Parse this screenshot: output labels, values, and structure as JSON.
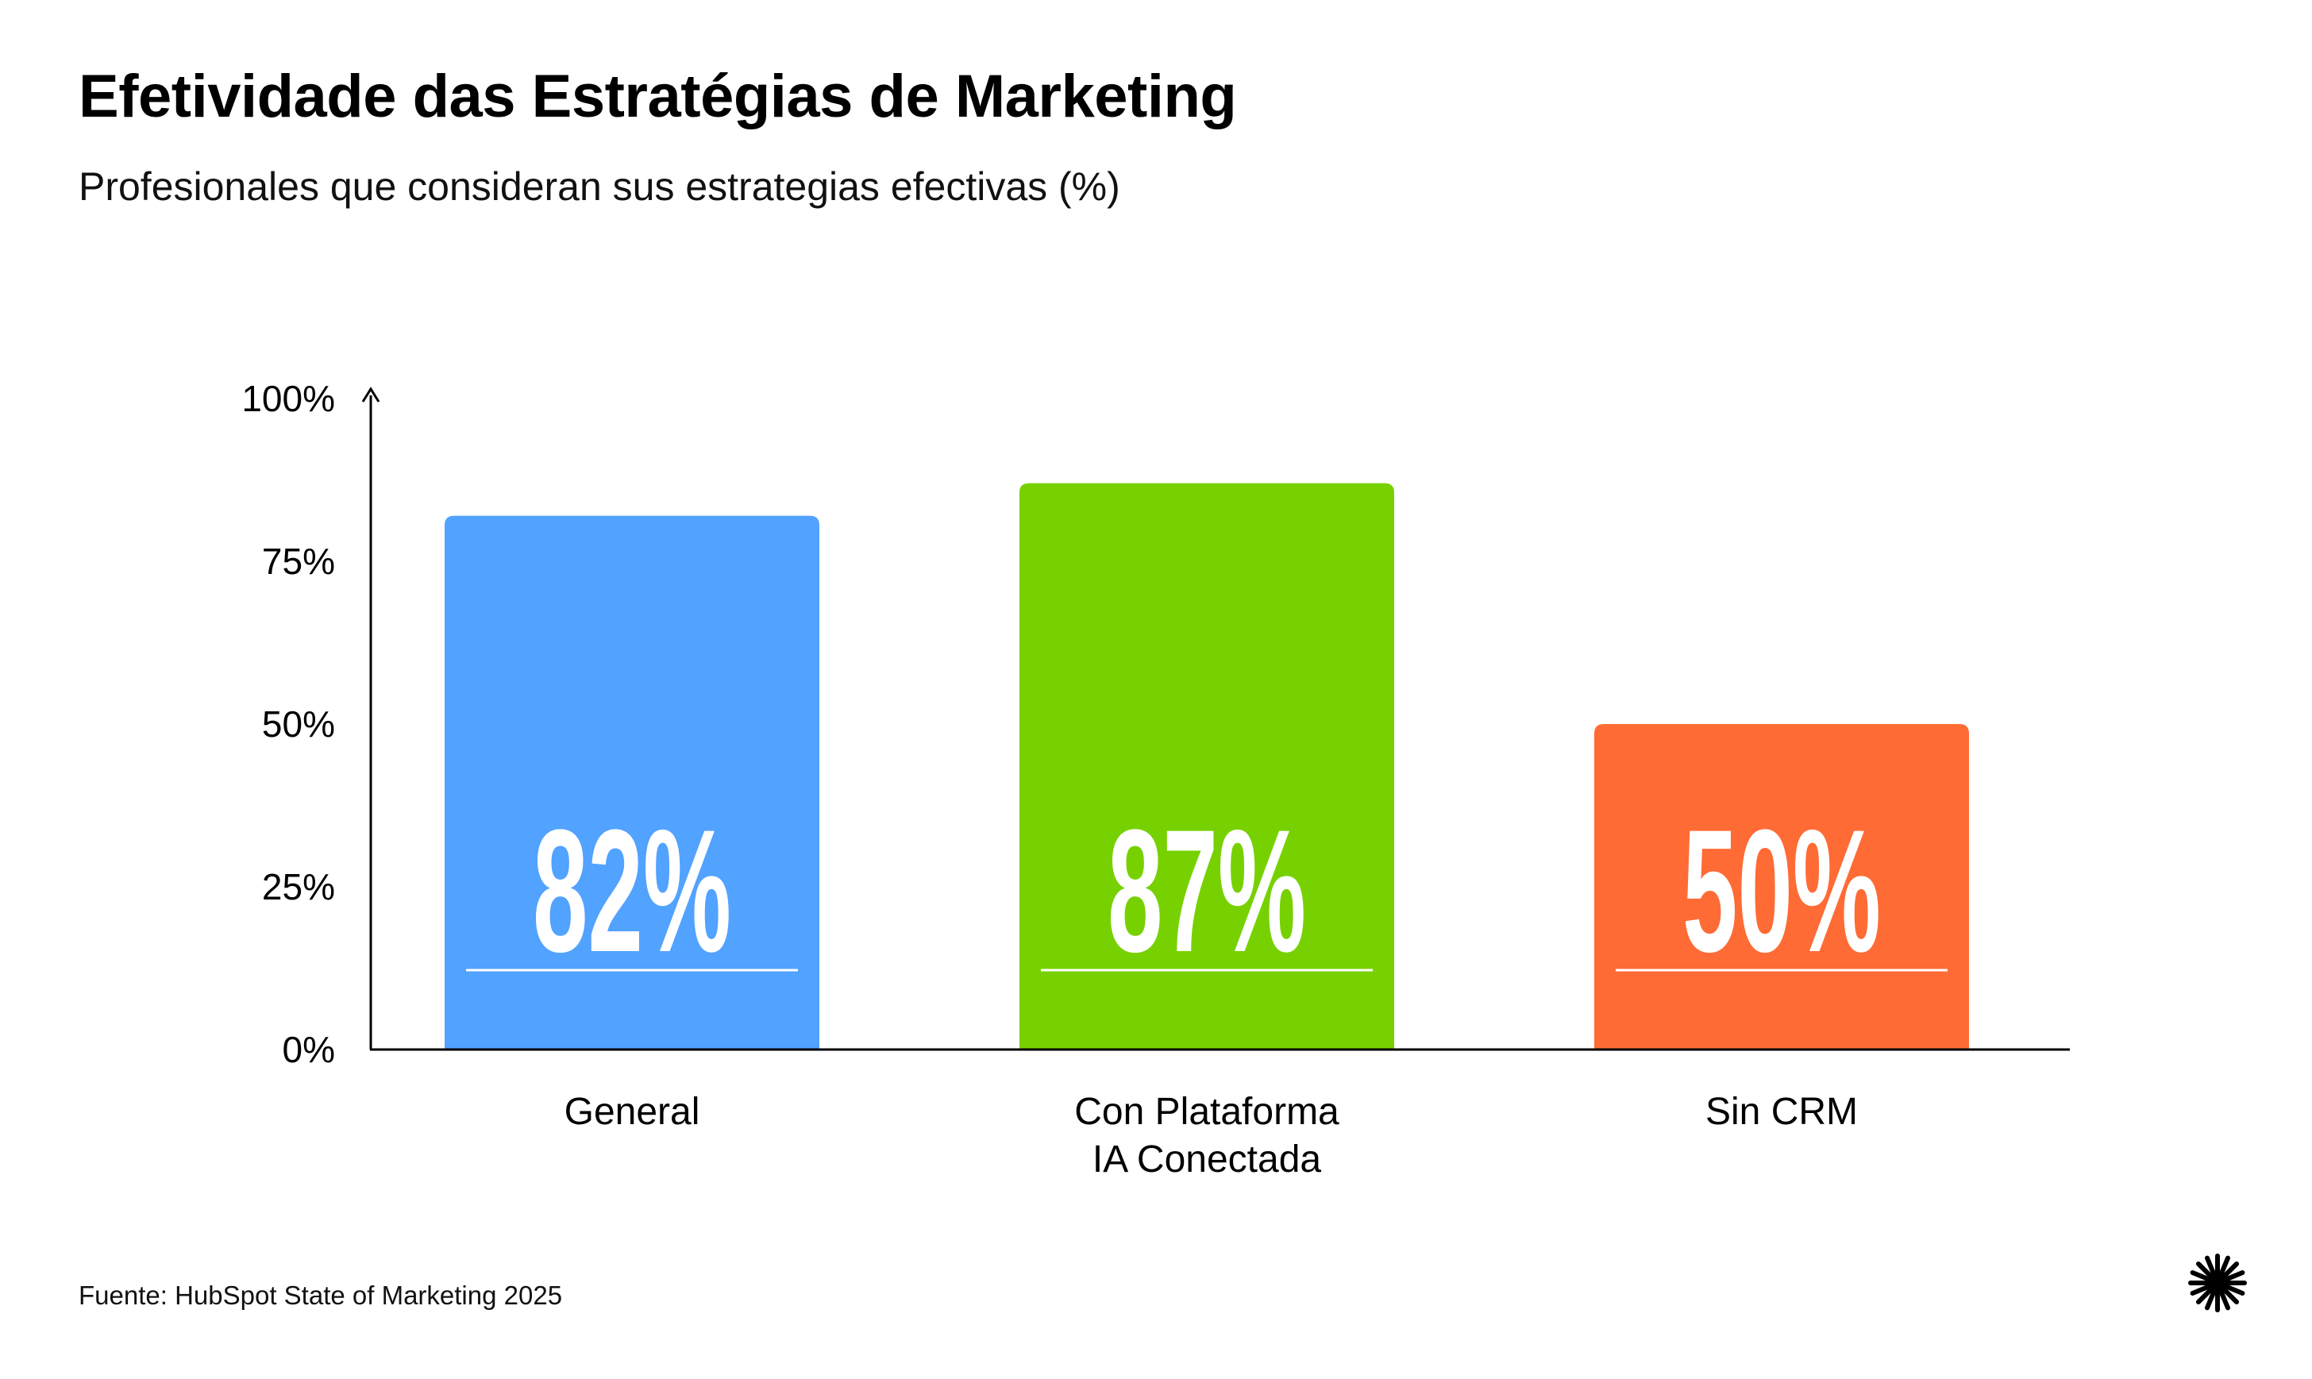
{
  "header": {
    "title": "Efetividade das Estratégias de Marketing",
    "subtitle": "Profesionales que consideran sus estrategias efectivas (%)"
  },
  "footer": {
    "source": "Fuente: HubSpot State of Marketing 2025"
  },
  "logo": {
    "icon": "starburst-icon"
  },
  "chart_data": {
    "type": "bar",
    "categories": [
      "General",
      "Con Plataforma IA Conectada",
      "Sin CRM"
    ],
    "category_lines": [
      [
        "General"
      ],
      [
        "Con Plataforma",
        "IA Conectada"
      ],
      [
        "Sin CRM"
      ]
    ],
    "values": [
      82,
      87,
      50
    ],
    "value_labels": [
      "82%",
      "87%",
      "50%"
    ],
    "bar_colors": [
      "#52A2FF",
      "#77D100",
      "#FF6B35"
    ],
    "ylim": [
      0,
      100
    ],
    "y_ticks": [
      0,
      25,
      50,
      75,
      100
    ],
    "y_tick_labels": [
      "0%",
      "25%",
      "50%",
      "75%",
      "100%"
    ],
    "title": "Efetividade das Estratégias de Marketing",
    "subtitle": "Profesionales que consideran sus estrategias efectivas (%)",
    "xlabel": "",
    "ylabel": "",
    "grid": false,
    "legend": "none"
  }
}
